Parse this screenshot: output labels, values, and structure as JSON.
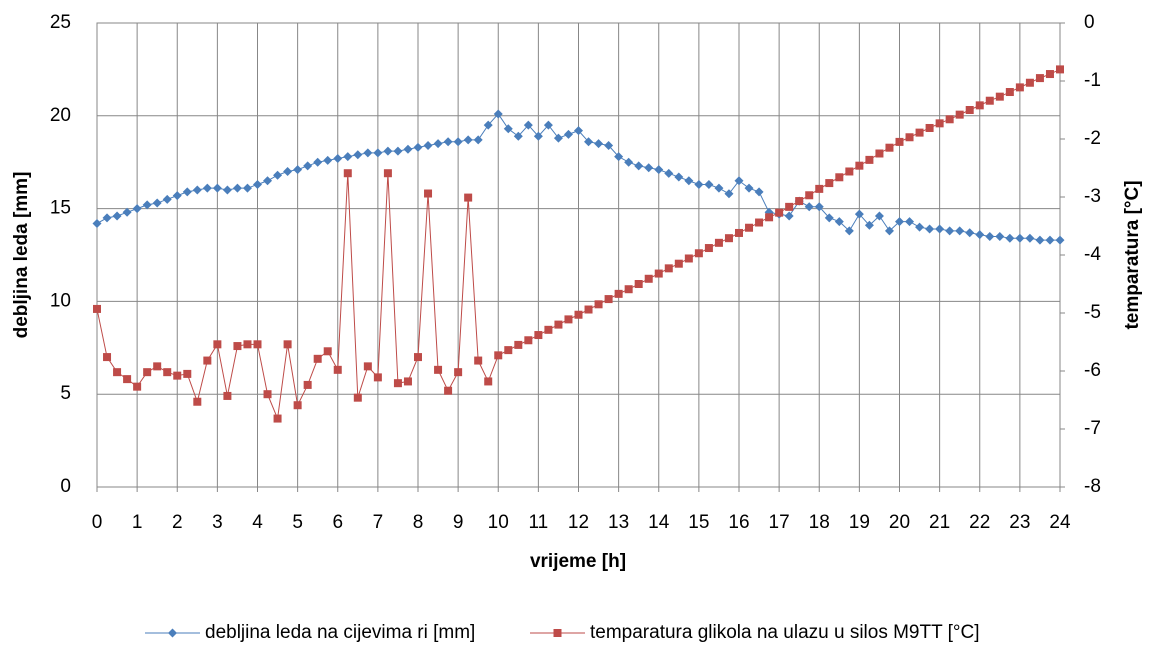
{
  "chart_data": {
    "type": "line",
    "x_label": "vrijeme [h]",
    "y_label": "debljina leda [mm]",
    "y2_label": "temparatura [°C]",
    "x": [
      0,
      0.25,
      0.5,
      0.75,
      1,
      1.25,
      1.5,
      1.75,
      2,
      2.25,
      2.5,
      2.75,
      3,
      3.25,
      3.5,
      3.75,
      4,
      4.25,
      4.5,
      4.75,
      5,
      5.25,
      5.5,
      5.75,
      6,
      6.25,
      6.5,
      6.75,
      7,
      7.25,
      7.5,
      7.75,
      8,
      8.25,
      8.5,
      8.75,
      9,
      9.25,
      9.5,
      9.75,
      10,
      10.25,
      10.5,
      10.75,
      11,
      11.25,
      11.5,
      11.75,
      12,
      12.25,
      12.5,
      12.75,
      13,
      13.25,
      13.5,
      13.75,
      14,
      14.25,
      14.5,
      14.75,
      15,
      15.25,
      15.5,
      15.75,
      16,
      16.25,
      16.5,
      16.75,
      17,
      17.25,
      17.5,
      17.75,
      18,
      18.25,
      18.5,
      18.75,
      19,
      19.25,
      19.5,
      19.75,
      20,
      20.25,
      20.5,
      20.75,
      21,
      21.25,
      21.5,
      21.75,
      22,
      22.25,
      22.5,
      22.75,
      23,
      23.25,
      23.5,
      23.75,
      24
    ],
    "series": [
      {
        "name": "debljina leda na cijevima ri [mm]",
        "color": "#4a7ebb",
        "marker": "diamond",
        "values": [
          14.2,
          14.5,
          14.6,
          14.8,
          15.0,
          15.2,
          15.3,
          15.5,
          15.7,
          15.9,
          16.0,
          16.1,
          16.1,
          16.0,
          16.1,
          16.1,
          16.3,
          16.5,
          16.8,
          17.0,
          17.1,
          17.3,
          17.5,
          17.6,
          17.7,
          17.8,
          17.9,
          18.0,
          18.0,
          18.1,
          18.1,
          18.2,
          18.3,
          18.4,
          18.5,
          18.6,
          18.6,
          18.7,
          18.7,
          19.5,
          20.1,
          19.3,
          18.9,
          19.5,
          18.9,
          19.5,
          18.8,
          19.0,
          19.2,
          18.6,
          18.5,
          18.4,
          17.8,
          17.5,
          17.3,
          17.2,
          17.1,
          16.9,
          16.7,
          16.5,
          16.3,
          16.3,
          16.1,
          15.8,
          16.5,
          16.1,
          15.9,
          14.8,
          14.7,
          14.6,
          15.4,
          15.1,
          15.1,
          14.5,
          14.3,
          13.8,
          14.7,
          14.1,
          14.6,
          13.8,
          14.3,
          14.3,
          14.0,
          13.9,
          13.9,
          13.8,
          13.8,
          13.7,
          13.6,
          13.5,
          13.5,
          13.4,
          13.4,
          13.4,
          13.3,
          13.3,
          13.3
        ]
      },
      {
        "name": "temparatura glikola na ulazu u silos M9TT [°C]",
        "color": "#be4b48",
        "marker": "square",
        "axis": "y2",
        "values": [
          -4.93,
          -5.76,
          -6.02,
          -6.14,
          -6.27,
          -6.02,
          -5.92,
          -6.02,
          -6.08,
          -6.05,
          -6.53,
          -5.82,
          -5.54,
          -6.43,
          -5.57,
          -5.54,
          -5.54,
          -6.4,
          -6.82,
          -5.54,
          -6.59,
          -6.24,
          -5.79,
          -5.66,
          -5.98,
          -2.59,
          -6.46,
          -5.92,
          -6.11,
          -2.59,
          -6.21,
          -6.18,
          -5.76,
          -2.94,
          -5.98,
          -6.34,
          -6.02,
          -3.01,
          -5.82,
          -6.18,
          -5.73,
          -5.64,
          -5.55,
          -5.47,
          -5.38,
          -5.29,
          -5.2,
          -5.11,
          -5.03,
          -4.94,
          -4.85,
          -4.76,
          -4.67,
          -4.59,
          -4.5,
          -4.41,
          -4.32,
          -4.23,
          -4.15,
          -4.06,
          -3.97,
          -3.88,
          -3.79,
          -3.71,
          -3.62,
          -3.53,
          -3.44,
          -3.35,
          -3.27,
          -3.17,
          -3.07,
          -2.97,
          -2.86,
          -2.76,
          -2.66,
          -2.56,
          -2.46,
          -2.36,
          -2.25,
          -2.15,
          -2.05,
          -1.97,
          -1.89,
          -1.81,
          -1.73,
          -1.66,
          -1.58,
          -1.5,
          -1.42,
          -1.34,
          -1.27,
          -1.19,
          -1.11,
          -1.03,
          -0.95,
          -0.88,
          -0.8
        ]
      }
    ],
    "xlim": [
      0,
      24
    ],
    "xticks": [
      0,
      1,
      2,
      3,
      4,
      5,
      6,
      7,
      8,
      9,
      10,
      11,
      12,
      13,
      14,
      15,
      16,
      17,
      18,
      19,
      20,
      21,
      22,
      23,
      24
    ],
    "ylim": [
      0,
      25
    ],
    "yticks": [
      0,
      5,
      10,
      15,
      20,
      25
    ],
    "y2lim": [
      -8,
      0
    ],
    "y2ticks": [
      -8,
      -7,
      -6,
      -5,
      -4,
      -3,
      -2,
      -1,
      0
    ],
    "grid": true,
    "legend": "bottom"
  }
}
